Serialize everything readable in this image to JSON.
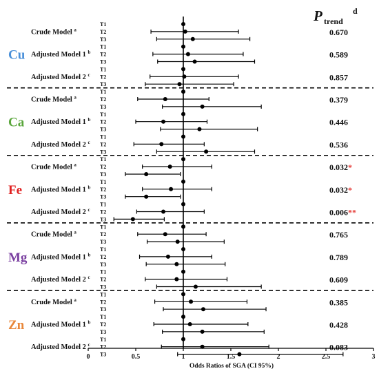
{
  "chart_data": {
    "type": "forest",
    "p_header": {
      "symbol": "P",
      "subscript": "trend",
      "superscript": "d"
    },
    "xlabel": "Odds Ratios of SGA (CI 95%)",
    "xlim": [
      0,
      3
    ],
    "xticks": [
      0,
      0.5,
      1,
      1.5,
      2,
      2.5,
      3
    ],
    "reference_line": 1,
    "tertile_labels": [
      "T1",
      "T2",
      "T3"
    ],
    "groups": [
      {
        "metal": "Cu",
        "color": "#4a90d9",
        "models": [
          {
            "name": "Crude Model",
            "sup": "a",
            "p": "0.670",
            "stars": "",
            "estimates": [
              {
                "or": 1,
                "lo": 1,
                "hi": 1
              },
              {
                "or": 1.02,
                "lo": 0.66,
                "hi": 1.58
              },
              {
                "or": 1.1,
                "lo": 0.72,
                "hi": 1.7
              }
            ]
          },
          {
            "name": "Adjusted Model 1",
            "sup": "b",
            "p": "0.589",
            "stars": "",
            "estimates": [
              {
                "or": 1,
                "lo": 1,
                "hi": 1
              },
              {
                "or": 1.05,
                "lo": 0.68,
                "hi": 1.63
              },
              {
                "or": 1.12,
                "lo": 0.73,
                "hi": 1.75
              }
            ]
          },
          {
            "name": "Adjusted Model 2",
            "sup": "c",
            "p": "0.857",
            "stars": "",
            "estimates": [
              {
                "or": 1,
                "lo": 1,
                "hi": 1
              },
              {
                "or": 1.01,
                "lo": 0.65,
                "hi": 1.58
              },
              {
                "or": 0.96,
                "lo": 0.6,
                "hi": 1.53
              }
            ]
          }
        ]
      },
      {
        "metal": "Ca",
        "color": "#5aa63c",
        "models": [
          {
            "name": "Crude Model",
            "sup": "a",
            "p": "0.379",
            "stars": "",
            "estimates": [
              {
                "or": 1,
                "lo": 1,
                "hi": 1
              },
              {
                "or": 0.81,
                "lo": 0.52,
                "hi": 1.27
              },
              {
                "or": 1.2,
                "lo": 0.78,
                "hi": 1.82
              }
            ]
          },
          {
            "name": "Adjusted Model 1",
            "sup": "b",
            "p": "0.446",
            "stars": "",
            "estimates": [
              {
                "or": 1,
                "lo": 1,
                "hi": 1
              },
              {
                "or": 0.79,
                "lo": 0.5,
                "hi": 1.25
              },
              {
                "or": 1.17,
                "lo": 0.76,
                "hi": 1.78
              }
            ]
          },
          {
            "name": "Adjusted Model 2",
            "sup": "c",
            "p": "0.536",
            "stars": "",
            "estimates": [
              {
                "or": 1,
                "lo": 1,
                "hi": 1
              },
              {
                "or": 0.77,
                "lo": 0.48,
                "hi": 1.22
              },
              {
                "or": 1.24,
                "lo": 0.72,
                "hi": 1.75
              }
            ]
          }
        ]
      },
      {
        "metal": "Fe",
        "color": "#e02020",
        "models": [
          {
            "name": "Crude Model",
            "sup": "a",
            "p": "0.032",
            "stars": "*",
            "estimates": [
              {
                "or": 1,
                "lo": 1,
                "hi": 1
              },
              {
                "or": 0.86,
                "lo": 0.57,
                "hi": 1.3
              },
              {
                "or": 0.61,
                "lo": 0.39,
                "hi": 0.97
              }
            ]
          },
          {
            "name": "Adjusted Model 1",
            "sup": "b",
            "p": "0.032",
            "stars": "*",
            "estimates": [
              {
                "or": 1,
                "lo": 1,
                "hi": 1
              },
              {
                "or": 0.87,
                "lo": 0.57,
                "hi": 1.3
              },
              {
                "or": 0.61,
                "lo": 0.39,
                "hi": 0.97
              }
            ]
          },
          {
            "name": "Adjusted Model  2",
            "sup": "c",
            "p": "0.006",
            "stars": "**",
            "estimates": [
              {
                "or": 1,
                "lo": 1,
                "hi": 1
              },
              {
                "or": 0.79,
                "lo": 0.51,
                "hi": 1.22
              },
              {
                "or": 0.47,
                "lo": 0.27,
                "hi": 0.8
              }
            ]
          }
        ]
      },
      {
        "metal": "Mg",
        "color": "#7a3fa0",
        "models": [
          {
            "name": "Crude Model",
            "sup": "a",
            "p": "0.765",
            "stars": "",
            "estimates": [
              {
                "or": 1,
                "lo": 1,
                "hi": 1
              },
              {
                "or": 0.81,
                "lo": 0.52,
                "hi": 1.24
              },
              {
                "or": 0.94,
                "lo": 0.62,
                "hi": 1.43
              }
            ]
          },
          {
            "name": "Adjusted Model 1",
            "sup": "b",
            "p": "0.789",
            "stars": "",
            "estimates": [
              {
                "or": 1,
                "lo": 1,
                "hi": 1
              },
              {
                "or": 0.84,
                "lo": 0.54,
                "hi": 1.3
              },
              {
                "or": 0.93,
                "lo": 0.61,
                "hi": 1.44
              }
            ]
          },
          {
            "name": "Adjusted Model 2",
            "sup": "c",
            "p": "0.609",
            "stars": "",
            "estimates": [
              {
                "or": 1,
                "lo": 1,
                "hi": 1
              },
              {
                "or": 0.93,
                "lo": 0.6,
                "hi": 1.46
              },
              {
                "or": 1.13,
                "lo": 0.72,
                "hi": 1.82
              }
            ]
          }
        ]
      },
      {
        "metal": "Zn",
        "color": "#e8873a",
        "models": [
          {
            "name": "Crude Model",
            "sup": "a",
            "p": "0.385",
            "stars": "",
            "estimates": [
              {
                "or": 1,
                "lo": 1,
                "hi": 1
              },
              {
                "or": 1.08,
                "lo": 0.7,
                "hi": 1.67
              },
              {
                "or": 1.21,
                "lo": 0.79,
                "hi": 1.87
              }
            ]
          },
          {
            "name": "Adjusted Model 1",
            "sup": "b",
            "p": "0.428",
            "stars": "",
            "estimates": [
              {
                "or": 1,
                "lo": 1,
                "hi": 1
              },
              {
                "or": 1.07,
                "lo": 0.69,
                "hi": 1.68
              },
              {
                "or": 1.2,
                "lo": 0.78,
                "hi": 1.85
              }
            ]
          },
          {
            "name": "Adjusted Model 2",
            "sup": "c",
            "p": "0.083",
            "stars": "",
            "estimates": [
              {
                "or": 1,
                "lo": 1,
                "hi": 1
              },
              {
                "or": 1.2,
                "lo": 0.77,
                "hi": 1.9
              },
              {
                "or": 1.59,
                "lo": 0.94,
                "hi": 2.68
              }
            ]
          }
        ]
      }
    ]
  }
}
